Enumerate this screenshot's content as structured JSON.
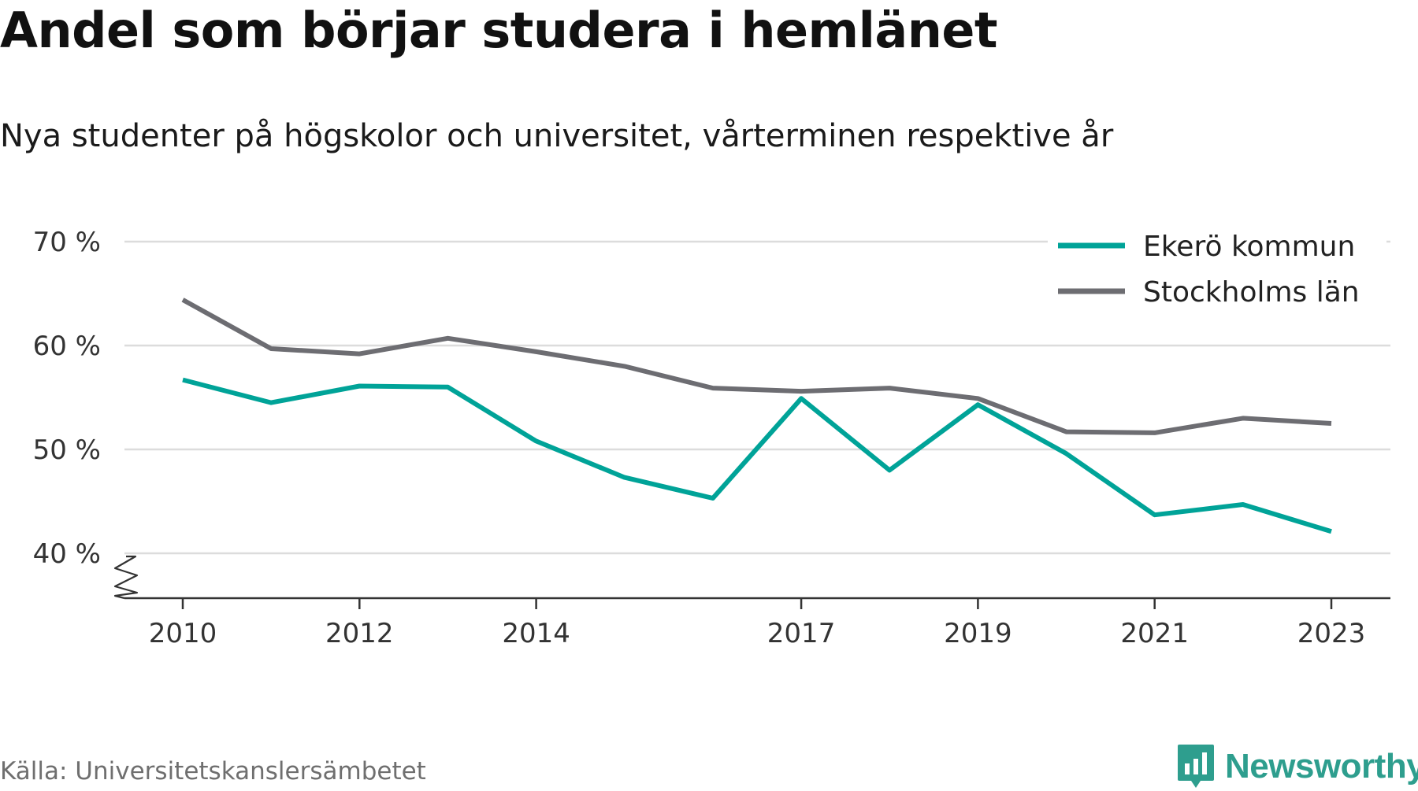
{
  "title": "Andel som börjar studera i hemlänet",
  "subtitle": "Nya studenter på högskolor och universitet, vårterminen respektive år",
  "source": "Källa: Universitetskanslersämbetet",
  "brand": {
    "name": "Newsworthy",
    "icon": "newsworthy-logo-icon",
    "color": "#2e9e8e"
  },
  "chart_data": {
    "type": "line",
    "x": [
      2010,
      2011,
      2012,
      2013,
      2014,
      2015,
      2016,
      2017,
      2018,
      2019,
      2020,
      2021,
      2022,
      2023
    ],
    "x_tick_labels": [
      "2010",
      "2012",
      "2014",
      "2017",
      "2019",
      "2021",
      "2023"
    ],
    "y_tick_labels": [
      "70 %",
      "60 %",
      "50 %",
      "40 %"
    ],
    "y_ticks": [
      70,
      60,
      50,
      40
    ],
    "ylim": [
      40,
      70
    ],
    "grid": true,
    "axis_break": true,
    "legend_position": "top-right",
    "series": [
      {
        "name": "Ekerö kommun",
        "color": "#00a398",
        "values": [
          56.7,
          54.5,
          56.1,
          56.0,
          50.8,
          47.3,
          45.3,
          54.9,
          48.0,
          54.3,
          49.6,
          43.7,
          44.7,
          42.1
        ]
      },
      {
        "name": "Stockholms län",
        "color": "#6d6d72",
        "values": [
          64.4,
          59.7,
          59.2,
          60.7,
          59.4,
          58.0,
          55.9,
          55.6,
          55.9,
          54.9,
          51.7,
          51.6,
          53.0,
          52.5
        ]
      }
    ]
  }
}
